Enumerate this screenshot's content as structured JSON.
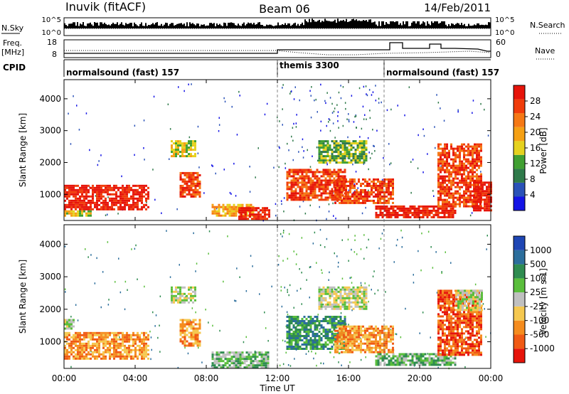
{
  "header": {
    "station": "Inuvik (fitACF)",
    "beam": "Beam 06",
    "date": "14/Feb/2011"
  },
  "noise_panel": {
    "left_label": "N.Sky",
    "right_label": "N.Search",
    "left_ticks": [
      "10^5",
      "10^0"
    ],
    "right_ticks": [
      "10^5",
      "10^0"
    ]
  },
  "freq_panel": {
    "left_label": "Freq.",
    "left_unit": "[MHz]",
    "left_ticks": [
      "18",
      "8"
    ],
    "right_label": "Nave",
    "right_ticks": [
      "60",
      "0"
    ]
  },
  "cpid": {
    "label": "CPID",
    "segments": [
      {
        "name": "normalsound (fast) 157",
        "start_hour": 0,
        "end_hour": 12
      },
      {
        "name": "themis 3300",
        "start_hour": 12,
        "end_hour": 18
      },
      {
        "name": "normalsound (fast) 157",
        "start_hour": 18,
        "end_hour": 24
      }
    ]
  },
  "x_axis": {
    "label": "Time UT",
    "ticks": [
      "00:00",
      "04:00",
      "08:00",
      "12:00",
      "16:00",
      "20:00",
      "00:00"
    ]
  },
  "power_panel": {
    "ylabel": "Slant Range [km]",
    "yticks": [
      "1000",
      "2000",
      "3000",
      "4000"
    ],
    "colorbar_label": "Power [dB]",
    "colorbar_ticks": [
      "4",
      "8",
      "12",
      "16",
      "20",
      "24",
      "28"
    ],
    "colors": [
      "#1414e6",
      "#2a52b8",
      "#2f7a4a",
      "#41a032",
      "#e6d21e",
      "#f5a014",
      "#f57814",
      "#f03c0a",
      "#e6140a"
    ]
  },
  "velocity_panel": {
    "ylabel": "Slant Range [km]",
    "yticks": [
      "1000",
      "2000",
      "3000",
      "4000"
    ],
    "colorbar_label": "Velocity [m s-1]",
    "colorbar_ticks": [
      "1000",
      "500",
      "100",
      "25",
      "-25",
      "-100",
      "-500",
      "-1000"
    ],
    "colors": [
      "#1e46b4",
      "#2c6e9c",
      "#2f8c50",
      "#5abe3c",
      "#c0c0c0",
      "#f5c850",
      "#f58c1e",
      "#f05a14",
      "#e6140a"
    ]
  },
  "chart_data": {
    "type": "heatmap",
    "x_range_hours": [
      0,
      24
    ],
    "y_range_km": [
      180,
      4600
    ],
    "power_patches": [
      {
        "t0": 0.0,
        "t1": 4.8,
        "r0": 500,
        "r1": 1300,
        "level": 8
      },
      {
        "t0": 0.0,
        "t1": 1.5,
        "r0": 350,
        "r1": 500,
        "level": 4
      },
      {
        "t0": 6.5,
        "t1": 7.6,
        "r0": 900,
        "r1": 1700,
        "level": 7
      },
      {
        "t0": 6.0,
        "t1": 7.4,
        "r0": 2200,
        "r1": 2700,
        "level": 4
      },
      {
        "t0": 8.3,
        "t1": 10.6,
        "r0": 300,
        "r1": 700,
        "level": 5
      },
      {
        "t0": 9.8,
        "t1": 11.5,
        "r0": 200,
        "r1": 600,
        "level": 8
      },
      {
        "t0": 12.5,
        "t1": 15.8,
        "r0": 800,
        "r1": 1800,
        "level": 7
      },
      {
        "t0": 14.3,
        "t1": 17.0,
        "r0": 2000,
        "r1": 2700,
        "level": 3
      },
      {
        "t0": 15.2,
        "t1": 18.5,
        "r0": 700,
        "r1": 1500,
        "level": 7
      },
      {
        "t0": 17.5,
        "t1": 22.0,
        "r0": 300,
        "r1": 650,
        "level": 8
      },
      {
        "t0": 21.0,
        "t1": 23.5,
        "r0": 600,
        "r1": 2600,
        "level": 7
      },
      {
        "t0": 23.0,
        "t1": 24.0,
        "r0": 500,
        "r1": 1400,
        "level": 8
      }
    ],
    "velocity_patches": [
      {
        "t0": 0.0,
        "t1": 4.8,
        "r0": 500,
        "r1": 1300,
        "level": 6
      },
      {
        "t0": 0.0,
        "t1": 0.5,
        "r0": 1400,
        "r1": 1700,
        "level": 4
      },
      {
        "t0": 6.5,
        "t1": 7.6,
        "r0": 900,
        "r1": 1700,
        "level": 6
      },
      {
        "t0": 6.0,
        "t1": 7.4,
        "r0": 2200,
        "r1": 2700,
        "level": 4
      },
      {
        "t0": 8.3,
        "t1": 11.5,
        "r0": 200,
        "r1": 700,
        "level": 3
      },
      {
        "t0": 12.5,
        "t1": 15.8,
        "r0": 800,
        "r1": 1800,
        "level": 2
      },
      {
        "t0": 14.3,
        "t1": 17.0,
        "r0": 2000,
        "r1": 2700,
        "level": 4
      },
      {
        "t0": 15.2,
        "t1": 18.5,
        "r0": 700,
        "r1": 1500,
        "level": 6
      },
      {
        "t0": 17.5,
        "t1": 22.0,
        "r0": 300,
        "r1": 650,
        "level": 3
      },
      {
        "t0": 21.0,
        "t1": 23.5,
        "r0": 600,
        "r1": 2600,
        "level": 7
      },
      {
        "t0": 22.0,
        "t1": 23.5,
        "r0": 2000,
        "r1": 2600,
        "level": 4
      }
    ]
  }
}
